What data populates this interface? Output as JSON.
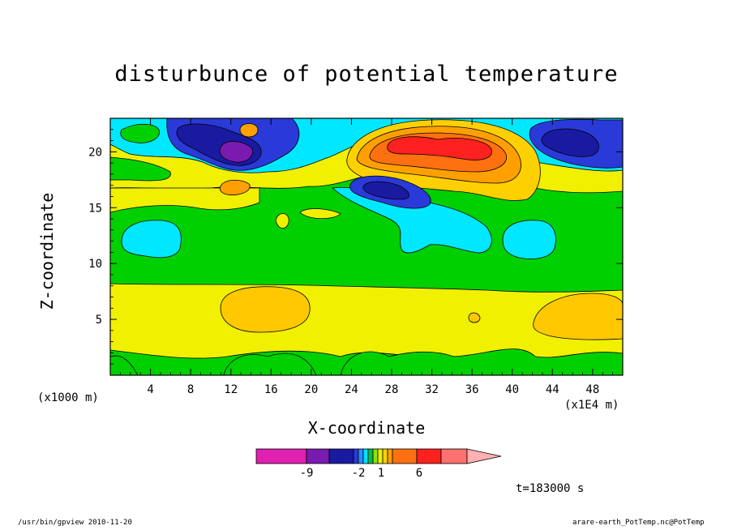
{
  "chart_data": {
    "type": "heatmap",
    "title": "disturbunce of potential temperature",
    "xlabel": "X-coordinate",
    "ylabel": "Z-coordinate",
    "x_units_note": "(x1E4 m)",
    "y_units_note": "(x1000 m)",
    "xlim": [
      0,
      51
    ],
    "ylim": [
      0,
      23
    ],
    "x_ticks": [
      4,
      8,
      12,
      16,
      20,
      24,
      28,
      32,
      36,
      40,
      44,
      48
    ],
    "y_ticks": [
      5,
      10,
      15,
      20
    ],
    "time_label": "t=183000 s",
    "colorbar": {
      "colors": [
        "#e020b0",
        "#7a1ab0",
        "#1a1aa0",
        "#2a3ad8",
        "#2a8cff",
        "#00e0ff",
        "#00c050",
        "#90e000",
        "#e8f000",
        "#ffd000",
        "#ffa000",
        "#ff7010",
        "#ff2020",
        "#ff7070",
        "#ffb0b0"
      ],
      "tick_labels": [
        "-9",
        "-2",
        "1",
        "6"
      ],
      "extend": "max"
    },
    "grid": false,
    "regions": [
      {
        "name": "upper-cold-left",
        "x": [
          6,
          17
        ],
        "z": [
          18,
          22.5
        ],
        "value": -9
      },
      {
        "name": "upper-warm-center",
        "x": [
          24,
          41
        ],
        "z": [
          18,
          22.5
        ],
        "value": 8
      },
      {
        "name": "upper-cold-right",
        "x": [
          42,
          50
        ],
        "z": [
          19,
          22.5
        ],
        "value": -6
      },
      {
        "name": "mid-cold-center",
        "x": [
          23,
          31
        ],
        "z": [
          15.5,
          18
        ],
        "value": -5
      },
      {
        "name": "mid-neutral",
        "x": [
          0,
          51
        ],
        "z": [
          8,
          15
        ],
        "value": 0
      },
      {
        "name": "low-warm",
        "x": [
          0,
          51
        ],
        "z": [
          1,
          8
        ],
        "value": 1
      },
      {
        "name": "low-warm-core-left",
        "x": [
          11,
          20
        ],
        "z": [
          4,
          7
        ],
        "value": 2
      },
      {
        "name": "low-warm-core-right",
        "x": [
          42,
          51
        ],
        "z": [
          3.5,
          6.5
        ],
        "value": 2
      }
    ]
  },
  "footer": {
    "left": "/usr/bin/gpview   2010-11-20",
    "right": "arare-earth_PotTemp.nc@PotTemp"
  }
}
